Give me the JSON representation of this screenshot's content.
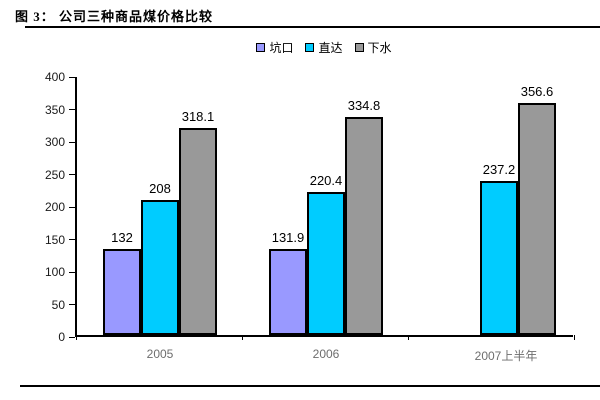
{
  "page": {
    "title": "图 3： 公司三种商品煤价格比较"
  },
  "chart_data": {
    "type": "bar",
    "title": "图 3： 公司三种商品煤价格比较",
    "categories": [
      "2005",
      "2006",
      "2007上半年"
    ],
    "series": [
      {
        "name": "坑口",
        "color": "#9999FF",
        "values": [
          132,
          131.9,
          null
        ]
      },
      {
        "name": "直达",
        "color": "#00CCFF",
        "values": [
          208,
          220.4,
          237.2
        ]
      },
      {
        "name": "下水",
        "color": "#999999",
        "values": [
          318.1,
          334.8,
          356.6
        ]
      }
    ],
    "ylim": [
      0,
      400
    ],
    "ytick_step": 50,
    "grid": false,
    "legend_position": "top-center",
    "xlabel": "",
    "ylabel": ""
  }
}
